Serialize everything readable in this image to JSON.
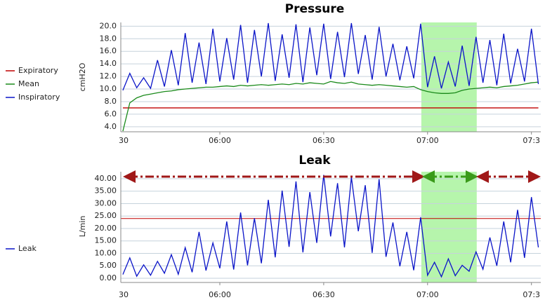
{
  "chart_data": [
    {
      "type": "line",
      "title": "Pressure",
      "y_label": "cmH2O",
      "x": [
        332,
        334,
        336,
        338,
        340,
        342,
        344,
        346,
        348,
        350,
        352,
        354,
        356,
        358,
        360,
        362,
        364,
        366,
        368,
        370,
        372,
        374,
        376,
        378,
        380,
        382,
        384,
        386,
        388,
        390,
        392,
        394,
        396,
        398,
        400,
        402,
        404,
        406,
        408,
        410,
        412,
        414,
        416,
        418,
        420,
        422,
        424,
        426,
        428,
        430,
        432,
        434,
        436,
        438,
        440,
        442,
        444,
        446,
        448,
        450,
        452
      ],
      "series": [
        {
          "name": "Expiratory",
          "color": "#c00000",
          "values": [
            7.0,
            7.0,
            7.0,
            7.0,
            7.0,
            7.0,
            7.0,
            7.0,
            7.0,
            7.0,
            7.0,
            7.0,
            7.0,
            7.0,
            7.0,
            7.0,
            7.0,
            7.0,
            7.0,
            7.0,
            7.0,
            7.0,
            7.0,
            7.0,
            7.0,
            7.0,
            7.0,
            7.0,
            7.0,
            7.0,
            7.0,
            7.0,
            7.0,
            7.0,
            7.0,
            7.0,
            7.0,
            7.0,
            7.0,
            7.0,
            7.0,
            7.0,
            7.0,
            7.0,
            7.0,
            7.0,
            7.0,
            7.0,
            7.0,
            7.0,
            7.0,
            7.0,
            7.0,
            7.0,
            7.0,
            7.0,
            7.0,
            7.0,
            7.0,
            7.0,
            7.0
          ]
        },
        {
          "name": "Mean",
          "color": "#1a8a1a",
          "values": [
            3.3,
            7.8,
            8.6,
            9.0,
            9.2,
            9.4,
            9.6,
            9.7,
            9.9,
            10.0,
            10.1,
            10.2,
            10.3,
            10.3,
            10.4,
            10.5,
            10.4,
            10.6,
            10.5,
            10.6,
            10.7,
            10.6,
            10.7,
            10.8,
            10.7,
            10.9,
            10.8,
            11.0,
            10.9,
            10.8,
            11.2,
            11.0,
            10.9,
            11.1,
            10.8,
            10.7,
            10.6,
            10.7,
            10.6,
            10.5,
            10.4,
            10.3,
            10.4,
            9.9,
            9.6,
            9.4,
            9.3,
            9.3,
            9.4,
            9.8,
            10.0,
            10.1,
            10.2,
            10.3,
            10.2,
            10.4,
            10.5,
            10.6,
            10.8,
            11.0,
            11.1
          ]
        },
        {
          "name": "Inspiratory",
          "color": "#0a14c8",
          "values": [
            9.8,
            12.5,
            10.2,
            11.8,
            10.1,
            14.6,
            10.4,
            16.2,
            10.6,
            18.9,
            11.0,
            17.4,
            10.8,
            19.6,
            11.2,
            18.1,
            11.5,
            20.2,
            11.0,
            19.4,
            12.0,
            20.5,
            11.3,
            18.7,
            11.8,
            20.3,
            11.1,
            19.8,
            12.2,
            20.4,
            11.6,
            19.1,
            11.9,
            20.5,
            12.4,
            18.6,
            11.5,
            19.9,
            12.0,
            17.2,
            11.4,
            16.8,
            11.7,
            20.4,
            10.3,
            15.2,
            10.1,
            14.3,
            10.4,
            16.9,
            10.5,
            18.3,
            11.0,
            17.8,
            10.6,
            18.8,
            10.9,
            16.4,
            11.2,
            19.6,
            10.8
          ]
        }
      ],
      "xlim": [
        331.4,
        452.7
      ],
      "xticks": [
        {
          "value": 330,
          "label": "30"
        },
        {
          "value": 360,
          "label": "06:00"
        },
        {
          "value": 390,
          "label": "06:30"
        },
        {
          "value": 420,
          "label": "07:00"
        },
        {
          "value": 450,
          "label": "07:3"
        }
      ],
      "ylim": [
        3.2,
        20.6
      ],
      "yticks": [
        {
          "value": 4,
          "label": "4.0"
        },
        {
          "value": 6,
          "label": "6.0"
        },
        {
          "value": 8,
          "label": "8.0"
        },
        {
          "value": 10,
          "label": "10.0"
        },
        {
          "value": 12,
          "label": "12.0"
        },
        {
          "value": 14,
          "label": "14.0"
        },
        {
          "value": 16,
          "label": "16.0"
        },
        {
          "value": 18,
          "label": "18.0"
        },
        {
          "value": 20,
          "label": "20.0"
        }
      ],
      "grid": true,
      "legend": "left",
      "highlight": {
        "x": [
          418.2,
          434.2
        ],
        "color": "#b6f5ac"
      }
    },
    {
      "type": "line",
      "title": "Leak",
      "y_label": "L/min",
      "x": [
        332,
        334,
        336,
        338,
        340,
        342,
        344,
        346,
        348,
        350,
        352,
        354,
        356,
        358,
        360,
        362,
        364,
        366,
        368,
        370,
        372,
        374,
        376,
        378,
        380,
        382,
        384,
        386,
        388,
        390,
        392,
        394,
        396,
        398,
        400,
        402,
        404,
        406,
        408,
        410,
        412,
        414,
        416,
        418,
        420,
        422,
        424,
        426,
        428,
        430,
        432,
        434,
        436,
        438,
        440,
        442,
        444,
        446,
        448,
        450,
        452
      ],
      "series": [
        {
          "name": "Leak",
          "color": "#0a14c8",
          "values": [
            1.5,
            8.2,
            0.8,
            5.4,
            1.2,
            6.8,
            2.0,
            9.5,
            1.6,
            12.3,
            2.4,
            18.6,
            3.1,
            14.2,
            4.0,
            22.8,
            3.5,
            26.4,
            5.2,
            24.1,
            6.0,
            31.5,
            8.4,
            35.2,
            12.6,
            38.9,
            10.4,
            34.6,
            14.2,
            41.5,
            16.8,
            38.2,
            12.4,
            40.6,
            18.9,
            37.4,
            10.2,
            39.8,
            8.6,
            22.4,
            4.8,
            18.6,
            3.2,
            24.5,
            1.2,
            6.4,
            0.6,
            7.8,
            1.0,
            5.2,
            2.8,
            10.6,
            3.6,
            16.4,
            5.0,
            22.8,
            6.4,
            27.5,
            8.2,
            32.6,
            12.4
          ]
        }
      ],
      "xlim": [
        331.4,
        452.7
      ],
      "xticks": [
        {
          "value": 330,
          "label": "30"
        },
        {
          "value": 360,
          "label": "06:00"
        },
        {
          "value": 390,
          "label": "06:30"
        },
        {
          "value": 420,
          "label": "07:00"
        },
        {
          "value": 450,
          "label": "07:3"
        }
      ],
      "ylim": [
        -1.7,
        42.8
      ],
      "yticks": [
        {
          "value": 0,
          "label": "0.00"
        },
        {
          "value": 5,
          "label": "5.00"
        },
        {
          "value": 10,
          "label": "10.00"
        },
        {
          "value": 15,
          "label": "15.00"
        },
        {
          "value": 20,
          "label": "20.00"
        },
        {
          "value": 25,
          "label": "25.00"
        },
        {
          "value": 30,
          "label": "30.00"
        },
        {
          "value": 35,
          "label": "35.00"
        },
        {
          "value": 40,
          "label": "40.00"
        }
      ],
      "grid": true,
      "legend": "left",
      "highlight": {
        "x": [
          418.2,
          434.2
        ],
        "color": "#b6f5ac"
      },
      "reference_line": {
        "value": 24,
        "color": "#c00000"
      }
    }
  ]
}
